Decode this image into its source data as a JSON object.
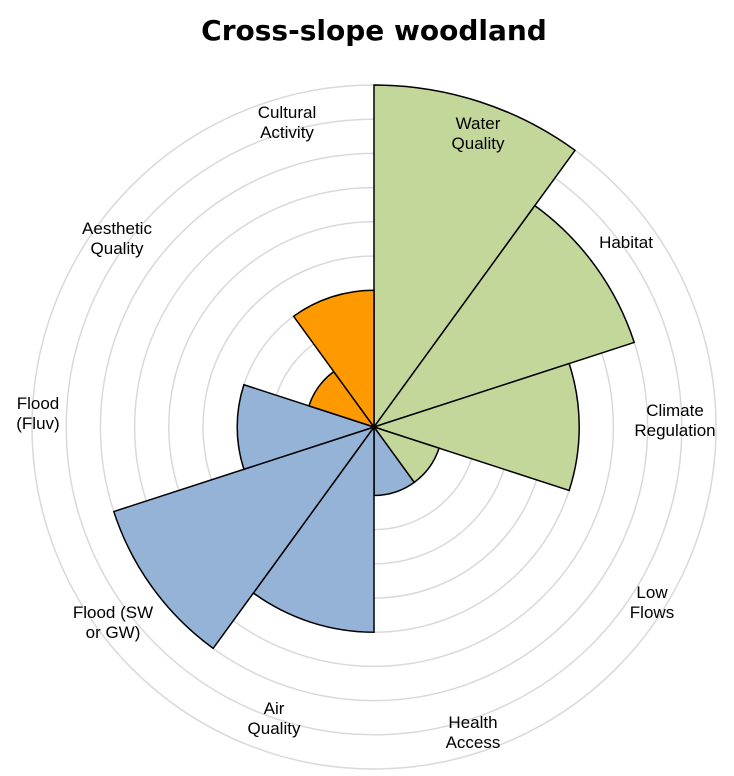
{
  "chart_data": {
    "type": "polar_area",
    "title": "Cross-slope woodland",
    "categories": [
      "Water\nQuality",
      "Habitat",
      "Climate\nRegulation",
      "Low\nFlows",
      "Health\nAccess",
      "Air\nQuality",
      "Flood (SW\nor GW)",
      "Flood\n(Fluv)",
      "Aesthetic\nQuality",
      "Cultural\nActivity"
    ],
    "values": [
      10,
      8,
      6,
      2,
      2,
      6,
      8,
      4,
      2,
      4
    ],
    "colors": [
      "#c4d79b",
      "#c4d79b",
      "#c4d79b",
      "#c4d79b",
      "#95b3d7",
      "#95b3d7",
      "#95b3d7",
      "#95b3d7",
      "#ff9900",
      "#ff9900"
    ],
    "ylim": [
      0,
      10
    ],
    "yticks": [
      1,
      2,
      3,
      4,
      5,
      6,
      7,
      8,
      9,
      10
    ],
    "grid": true
  }
}
